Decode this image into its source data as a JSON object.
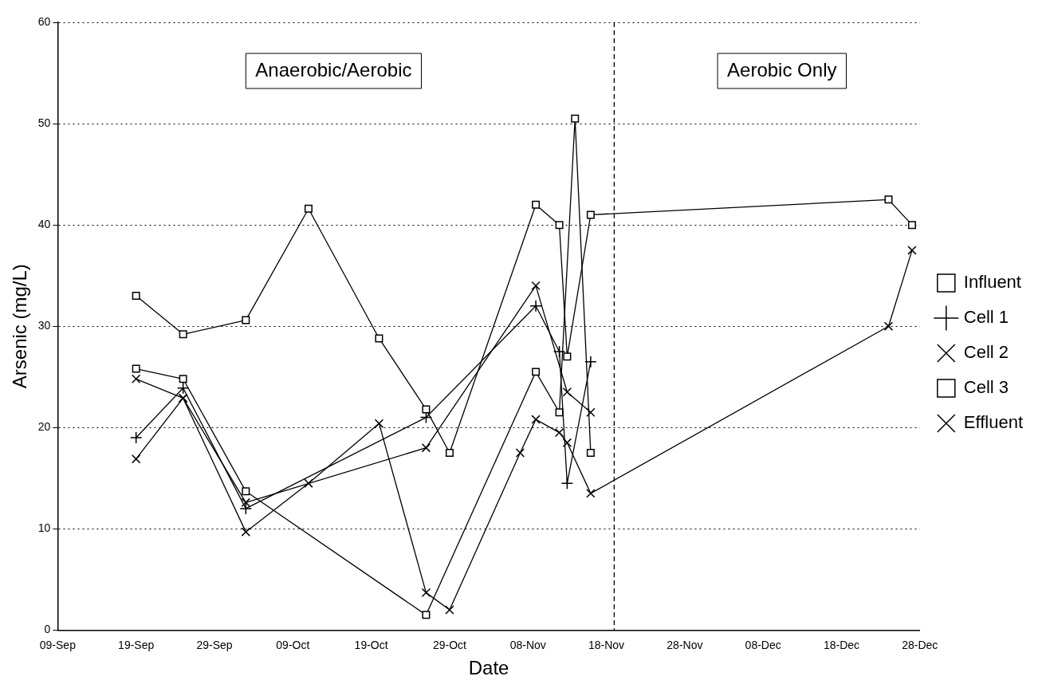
{
  "chart_data": {
    "type": "line",
    "xlabel": "Date",
    "ylabel": "Arsenic (mg/L)",
    "xlim": [
      "--09-09",
      "--12-28"
    ],
    "xticks": [
      {
        "value": "--09-09",
        "label": "09-Sep"
      },
      {
        "value": "--09-19",
        "label": "19-Sep"
      },
      {
        "value": "--09-29",
        "label": "29-Sep"
      },
      {
        "value": "--10-09",
        "label": "09-Oct"
      },
      {
        "value": "--10-19",
        "label": "19-Oct"
      },
      {
        "value": "--10-29",
        "label": "29-Oct"
      },
      {
        "value": "--11-08",
        "label": "08-Nov"
      },
      {
        "value": "--11-18",
        "label": "18-Nov"
      },
      {
        "value": "--11-28",
        "label": "28-Nov"
      },
      {
        "value": "--12-08",
        "label": "08-Dec"
      },
      {
        "value": "--12-18",
        "label": "18-Dec"
      },
      {
        "value": "--12-28",
        "label": "28-Dec"
      }
    ],
    "ylim": [
      0,
      60
    ],
    "yticks": [
      0,
      10,
      20,
      30,
      40,
      50,
      60
    ],
    "grid": "y",
    "legend": "right",
    "line_style": "solid",
    "ref_lines": [
      {
        "axis": "x",
        "value": "--11-19",
        "line_style": "dashed"
      }
    ],
    "annotations": [
      "Anaerobic/Aerobic",
      "Aerobic Only"
    ],
    "series": [
      {
        "name": "Influent",
        "color": "#000000",
        "marker": "square",
        "x": [
          "--09-19",
          "--09-25",
          "--10-03",
          "--10-11",
          "--10-20",
          "--10-26",
          "--10-29",
          "--11-09",
          "--11-12",
          "--11-13",
          "--11-16",
          "--12-24",
          "--12-27"
        ],
        "values": [
          33,
          29.2,
          30.6,
          41.6,
          28.8,
          21.8,
          17.5,
          42,
          40,
          27,
          41,
          42.5,
          40
        ]
      },
      {
        "name": "Cell 1",
        "color": "#000000",
        "marker": "plus",
        "x": [
          "--09-19",
          "--09-25",
          "--10-03",
          "--10-26",
          "--11-09",
          "--11-12",
          "--11-13",
          "--11-16"
        ],
        "values": [
          19,
          23.9,
          12,
          21,
          32,
          27.5,
          14.5,
          26.5
        ]
      },
      {
        "name": "Cell 2",
        "color": "#000000",
        "marker": "cross",
        "x": [
          "--09-19",
          "--09-25",
          "--10-03",
          "--10-26",
          "--11-09",
          "--11-13",
          "--11-16"
        ],
        "values": [
          16.9,
          22.9,
          12.6,
          18,
          34,
          23.5,
          21.5
        ]
      },
      {
        "name": "Cell 3",
        "color": "#000000",
        "marker": "square",
        "x": [
          "--09-19",
          "--09-25",
          "--10-03",
          "--10-26",
          "--11-09",
          "--11-12",
          "--11-14",
          "--11-16"
        ],
        "values": [
          25.8,
          24.8,
          13.7,
          1.5,
          25.5,
          21.5,
          50.5,
          17.5
        ]
      },
      {
        "name": "Effluent",
        "color": "#000000",
        "marker": "cross",
        "x": [
          "--09-19",
          "--09-25",
          "--10-03",
          "--10-11",
          "--10-20",
          "--10-26",
          "--10-29",
          "--11-07",
          "--11-09",
          "--11-12",
          "--11-13",
          "--11-16",
          "--12-24",
          "--12-27"
        ],
        "values": [
          24.8,
          22.9,
          9.7,
          14.5,
          20.4,
          3.7,
          2,
          17.5,
          20.8,
          19.5,
          18.5,
          13.5,
          30,
          37.5
        ]
      }
    ]
  }
}
